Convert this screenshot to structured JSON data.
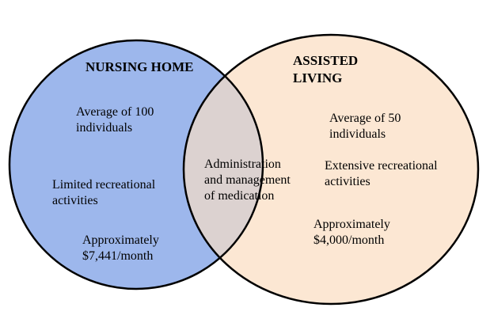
{
  "colors": {
    "left_fill": "#9DB7EC",
    "right_fill": "#FCE7D3",
    "overlap_fill": "#DCD2D0",
    "outline": "#000000"
  },
  "left": {
    "title": "NURSING HOME",
    "items": [
      {
        "line1": "Average of 100",
        "line2": "individuals"
      },
      {
        "line1": "Limited recreational",
        "line2": "activities"
      },
      {
        "line1": "Approximately",
        "line2": "$7,441/month"
      }
    ]
  },
  "right": {
    "title_line1": "ASSISTED",
    "title_line2": "LIVING",
    "items": [
      {
        "line1": "Average of 50",
        "line2": "individuals"
      },
      {
        "line1": "Extensive recreational",
        "line2": "activities"
      },
      {
        "line1": "Approximately",
        "line2": "$4,000/month"
      }
    ]
  },
  "overlap": {
    "line1": "Administration",
    "line2": "and management",
    "line3": "of medication"
  }
}
